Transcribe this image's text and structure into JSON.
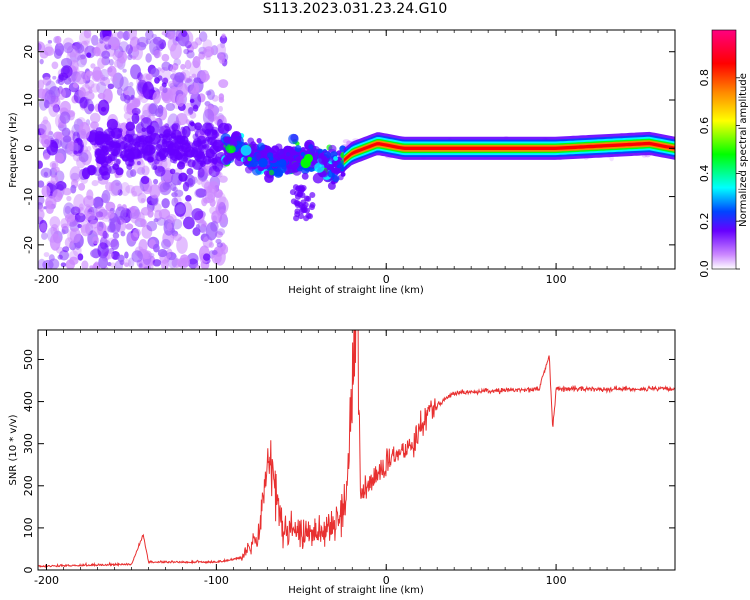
{
  "title": "S113.2023.031.23.24.G10",
  "chart_data": [
    {
      "type": "heatmap",
      "xlabel": "Height of straight line (km)",
      "ylabel": "Frequency (Hz)",
      "xlim": [
        -205,
        170
      ],
      "ylim": [
        -25,
        24.5
      ],
      "xticks": [
        -200,
        -100,
        0,
        100
      ],
      "xtick_labels": [
        "-200",
        "-100",
        "0",
        "100"
      ],
      "yticks": [
        -20,
        -10,
        0,
        10,
        20
      ],
      "ytick_labels": [
        "-20",
        "-10",
        "0",
        "10",
        "20"
      ],
      "colorbar": {
        "label": "Normalized spectral amplitude",
        "range": [
          0,
          1
        ],
        "ticks": [
          0.0,
          0.2,
          0.4,
          0.6,
          0.8
        ],
        "tick_labels": [
          "0.0",
          "0.2",
          "0.4",
          "0.6",
          "0.8"
        ],
        "colors": [
          "#ffffff",
          "#cc88ff",
          "#6600ff",
          "#0044ff",
          "#00ffff",
          "#00ff00",
          "#ffff00",
          "#ff8800",
          "#ff0000",
          "#ff0080"
        ]
      },
      "description_segments": [
        {
          "x_range": [
            -205,
            -95
          ],
          "freq_range": [
            -25,
            24
          ],
          "amplitude": "low-scattered"
        },
        {
          "x_range": [
            -95,
            -25
          ],
          "freq_range": [
            -12,
            8
          ],
          "amplitude": "medium"
        },
        {
          "x_range": [
            -25,
            170
          ],
          "freq_center": 0,
          "freq_width": 1.5,
          "amplitude": "high"
        }
      ],
      "peak_frequency_trace": [
        {
          "x": -90,
          "y": 0
        },
        {
          "x": -70,
          "y": -3
        },
        {
          "x": -55,
          "y": -2
        },
        {
          "x": -40,
          "y": -3
        },
        {
          "x": -30,
          "y": -4
        },
        {
          "x": -20,
          "y": -1
        },
        {
          "x": -5,
          "y": 1
        },
        {
          "x": 10,
          "y": 0
        },
        {
          "x": 50,
          "y": 0
        },
        {
          "x": 100,
          "y": 0
        },
        {
          "x": 155,
          "y": 1
        },
        {
          "x": 170,
          "y": 0
        }
      ]
    },
    {
      "type": "line",
      "xlabel": "Height of straight line (km)",
      "ylabel": "SNR (10 * v/v)",
      "xlim": [
        -205,
        170
      ],
      "ylim": [
        0,
        570
      ],
      "xticks": [
        -200,
        -100,
        0,
        100
      ],
      "xtick_labels": [
        "-200",
        "-100",
        "0",
        "100"
      ],
      "yticks": [
        0,
        100,
        200,
        300,
        400,
        500
      ],
      "ytick_labels": [
        "0",
        "100",
        "200",
        "300",
        "400",
        "500"
      ],
      "color": "#e83030",
      "series_outline": [
        {
          "x": -205,
          "y": 10
        },
        {
          "x": -150,
          "y": 15
        },
        {
          "x": -143,
          "y": 85
        },
        {
          "x": -140,
          "y": 20
        },
        {
          "x": -100,
          "y": 20
        },
        {
          "x": -85,
          "y": 30
        },
        {
          "x": -75,
          "y": 80
        },
        {
          "x": -70,
          "y": 270
        },
        {
          "x": -60,
          "y": 90
        },
        {
          "x": -40,
          "y": 90
        },
        {
          "x": -25,
          "y": 130
        },
        {
          "x": -17,
          "y": 570
        },
        {
          "x": -15,
          "y": 180
        },
        {
          "x": 0,
          "y": 250
        },
        {
          "x": 15,
          "y": 300
        },
        {
          "x": 25,
          "y": 380
        },
        {
          "x": 40,
          "y": 420
        },
        {
          "x": 60,
          "y": 425
        },
        {
          "x": 90,
          "y": 430
        },
        {
          "x": 96,
          "y": 510
        },
        {
          "x": 98,
          "y": 335
        },
        {
          "x": 100,
          "y": 430
        },
        {
          "x": 170,
          "y": 430
        }
      ]
    }
  ]
}
